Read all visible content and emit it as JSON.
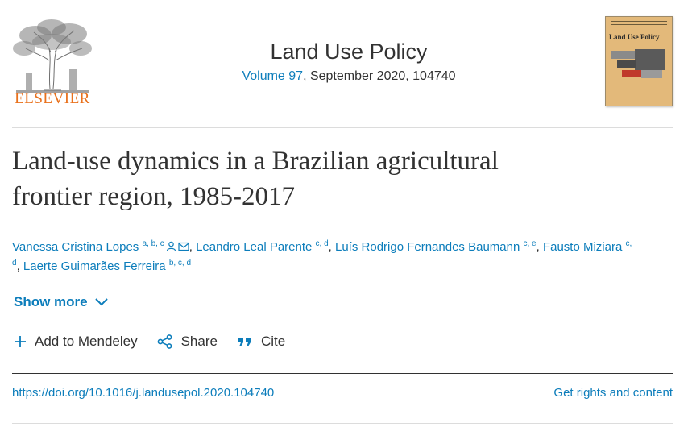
{
  "header": {
    "publisher": "ELSEVIER",
    "journal_title": "Land Use Policy",
    "volume_link": "Volume 97",
    "issue_rest": ", September 2020, 104740",
    "cover_title": "Land Use Policy"
  },
  "article": {
    "title_line1": "Land-use dynamics in a Brazilian agricultural",
    "title_line2": "frontier region, 1985-2017"
  },
  "authors": [
    {
      "name": "Vanessa Cristina Lopes",
      "affil": "a, b, c",
      "icons": [
        "person-icon",
        "mail-icon"
      ]
    },
    {
      "name": "Leandro Leal Parente",
      "affil": "c, d"
    },
    {
      "name": "Luís Rodrigo Fernandes Baumann",
      "affil": "c, e"
    },
    {
      "name": "Fausto Miziara",
      "affil": "c,",
      "affil2": "d"
    },
    {
      "name": "Laerte Guimarães Ferreira",
      "affil": "b, c, d"
    }
  ],
  "actions": {
    "show_more": "Show more",
    "mendeley": "Add to Mendeley",
    "share": "Share",
    "cite": "Cite"
  },
  "footer": {
    "doi": "https://doi.org/10.1016/j.landusepol.2020.104740",
    "rights": "Get rights and content"
  },
  "colors": {
    "link": "#0c7dbb",
    "text": "#323232",
    "brand": "#e9711c"
  }
}
